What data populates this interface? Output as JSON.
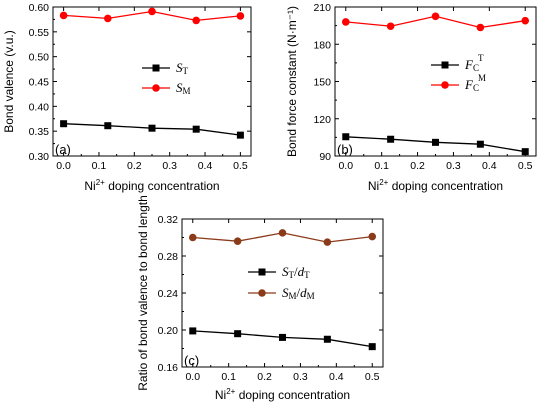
{
  "chart_data": [
    {
      "type": "line",
      "panel_label": "(a)",
      "x": [
        0.0,
        0.125,
        0.25,
        0.375,
        0.5
      ],
      "x_ticks": [
        "0.0",
        "0.1",
        "0.2",
        "0.3",
        "0.4",
        "0.5"
      ],
      "xlim": [
        -0.03,
        0.53
      ],
      "xlabel_main": "Ni",
      "xlabel_sup": "2+",
      "xlabel_rest": " doping concentration",
      "ylabel": "Bond valence (v.u.)",
      "ylim": [
        0.3,
        0.6
      ],
      "y_ticks": [
        "0.30",
        "0.35",
        "0.40",
        "0.45",
        "0.50",
        "0.55",
        "0.60"
      ],
      "grid": false,
      "legend_position": "middle-right",
      "series": [
        {
          "legend_main": "S",
          "legend_sub": "T",
          "legend_sub_style": "sub",
          "color": "#000000",
          "marker": "square",
          "values": [
            0.365,
            0.361,
            0.356,
            0.354,
            0.342
          ]
        },
        {
          "legend_main": "S",
          "legend_sub": "M",
          "legend_sub_style": "sub",
          "color": "#ff0000",
          "marker": "circle",
          "values": [
            0.583,
            0.577,
            0.591,
            0.573,
            0.582
          ]
        }
      ]
    },
    {
      "type": "line",
      "panel_label": "(b)",
      "x": [
        0.0,
        0.125,
        0.25,
        0.375,
        0.5
      ],
      "x_ticks": [
        "0.0",
        "0.1",
        "0.2",
        "0.3",
        "0.4",
        "0.5"
      ],
      "xlim": [
        -0.03,
        0.53
      ],
      "xlabel_main": "Ni",
      "xlabel_sup": "2+",
      "xlabel_rest": " doping concentration",
      "ylabel": "Bond force constant (N·m⁻¹)",
      "ylim": [
        90,
        210
      ],
      "y_ticks": [
        "90",
        "120",
        "150",
        "180",
        "210"
      ],
      "grid": false,
      "legend_position": "middle-right",
      "series": [
        {
          "legend_main": "F",
          "legend_sub": "C",
          "legend_sup": "T",
          "legend_sub_style": "sub",
          "color": "#000000",
          "marker": "square",
          "values": [
            105.5,
            103.5,
            101.0,
            99.5,
            93.5
          ]
        },
        {
          "legend_main": "F",
          "legend_sub": "C",
          "legend_sup": "M",
          "legend_sub_style": "sub",
          "color": "#ff0000",
          "marker": "circle",
          "values": [
            198.0,
            194.5,
            202.5,
            193.5,
            199.0
          ]
        }
      ]
    },
    {
      "type": "line",
      "panel_label": "(c)",
      "x": [
        0.0,
        0.125,
        0.25,
        0.375,
        0.5
      ],
      "x_ticks": [
        "0.0",
        "0.1",
        "0.2",
        "0.3",
        "0.4",
        "0.5"
      ],
      "xlim": [
        -0.03,
        0.53
      ],
      "xlabel_main": "Ni",
      "xlabel_sup": "2+",
      "xlabel_rest": " doping concentration",
      "ylabel": "Ratio of bond valence to bond length",
      "ylim": [
        0.16,
        0.32
      ],
      "y_ticks": [
        "0.16",
        "0.20",
        "0.24",
        "0.28",
        "0.32"
      ],
      "grid": false,
      "legend_position": "middle-right",
      "series": [
        {
          "legend_main": "S",
          "legend_sub": "T",
          "legend_div": "/",
          "legend_main2": "d",
          "legend_sub2": "T",
          "color": "#000000",
          "marker": "square",
          "values": [
            0.199,
            0.196,
            0.192,
            0.19,
            0.182
          ]
        },
        {
          "legend_main": "S",
          "legend_sub": "M",
          "legend_div": "/",
          "legend_main2": "d",
          "legend_sub2": "M",
          "color": "#8b3a1a",
          "marker": "circle",
          "values": [
            0.3,
            0.296,
            0.305,
            0.295,
            0.301
          ]
        }
      ]
    }
  ]
}
